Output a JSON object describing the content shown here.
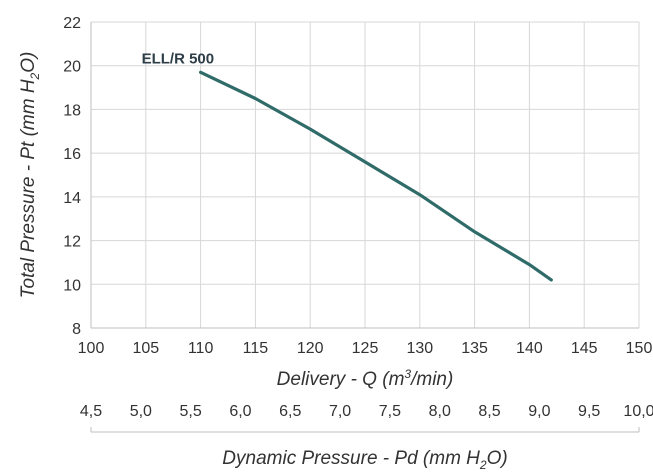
{
  "chart_data": {
    "type": "line",
    "series": [
      {
        "name": "ELL/R 500",
        "x": [
          110,
          115,
          120,
          125,
          130,
          135,
          140,
          142
        ],
        "y": [
          19.7,
          18.5,
          17.1,
          15.6,
          14.1,
          12.4,
          10.9,
          10.2
        ]
      }
    ],
    "xlim": [
      100,
      150
    ],
    "ylim": [
      8,
      22
    ],
    "x_ticks": [
      "100",
      "105",
      "110",
      "115",
      "120",
      "125",
      "130",
      "135",
      "140",
      "145",
      "150"
    ],
    "y_ticks": [
      "8",
      "10",
      "12",
      "14",
      "16",
      "18",
      "20",
      "22"
    ],
    "x2_ticks": [
      "4,5",
      "5,0",
      "5,5",
      "6,0",
      "6,5",
      "7,0",
      "7,5",
      "8,0",
      "8,5",
      "9,0",
      "9,5",
      "10,0"
    ],
    "xlabel_parts": [
      "Delivery - Q (m",
      "3",
      "/min)"
    ],
    "ylabel_parts": [
      "Total Pressure - Pt (mm H",
      "2",
      "O)"
    ],
    "x2label_parts": [
      "Dynamic Pressure - Pd (mm H",
      "2",
      "O)"
    ],
    "grid": true,
    "line_color": "#2f6b68"
  }
}
